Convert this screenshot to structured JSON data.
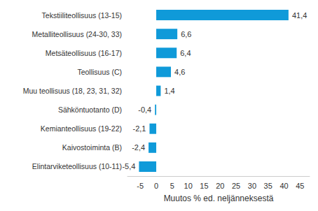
{
  "chart_data": {
    "type": "bar",
    "orientation": "horizontal",
    "categories": [
      "Tekstiiliteollisuus (13-15)",
      "Metalliteollisuus (24-30, 33)",
      "Metsäteollisuus (16-17)",
      "Teollisuus (C)",
      "Muu teollisuus (18, 23, 31, 32)",
      "Sähköntuotanto (D)",
      "Kemianteollisuus (19-22)",
      "Kaivostoiminta (B)",
      "Elintarviketeollisuus (10-11)"
    ],
    "values": [
      41.4,
      6.6,
      6.4,
      4.6,
      1.4,
      -0.4,
      -2.1,
      -2.4,
      -5.4
    ],
    "value_labels": [
      "41,4",
      "6,6",
      "6,4",
      "4,6",
      "1,4",
      "-0,4",
      "-2,1",
      "-2,4",
      "-5,4"
    ],
    "data_labels": true,
    "color": "#0f9ad9",
    "x_label": "Muutos % ed. neljänneksestä",
    "xlim": [
      -9,
      48
    ],
    "xticks": [
      -5,
      0,
      5,
      10,
      15,
      20,
      25,
      30,
      35,
      40,
      45
    ],
    "grid": false
  }
}
